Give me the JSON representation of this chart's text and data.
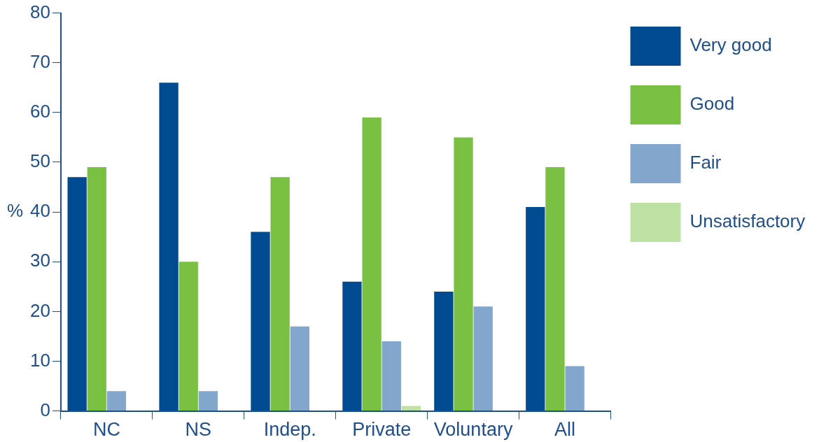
{
  "chart_data": {
    "type": "bar",
    "ylabel": "%",
    "categories": [
      "NC",
      "NS",
      "Indep.",
      "Private",
      "Voluntary",
      "All"
    ],
    "series": [
      {
        "name": "Very good",
        "color": "#004a91",
        "values": [
          47,
          66,
          36,
          26,
          24,
          41
        ]
      },
      {
        "name": "Good",
        "color": "#7ac143",
        "values": [
          49,
          30,
          47,
          59,
          55,
          49
        ]
      },
      {
        "name": "Fair",
        "color": "#82a6cc",
        "values": [
          4,
          4,
          17,
          14,
          21,
          9
        ]
      },
      {
        "name": "Unsatisfactory",
        "color": "#bde2a3",
        "values": [
          0,
          0,
          0,
          1,
          0,
          0
        ]
      }
    ],
    "ylim": [
      0,
      80
    ],
    "yticks": [
      0,
      10,
      20,
      30,
      40,
      50,
      60,
      70,
      80
    ],
    "grid": false,
    "legend": "right"
  }
}
